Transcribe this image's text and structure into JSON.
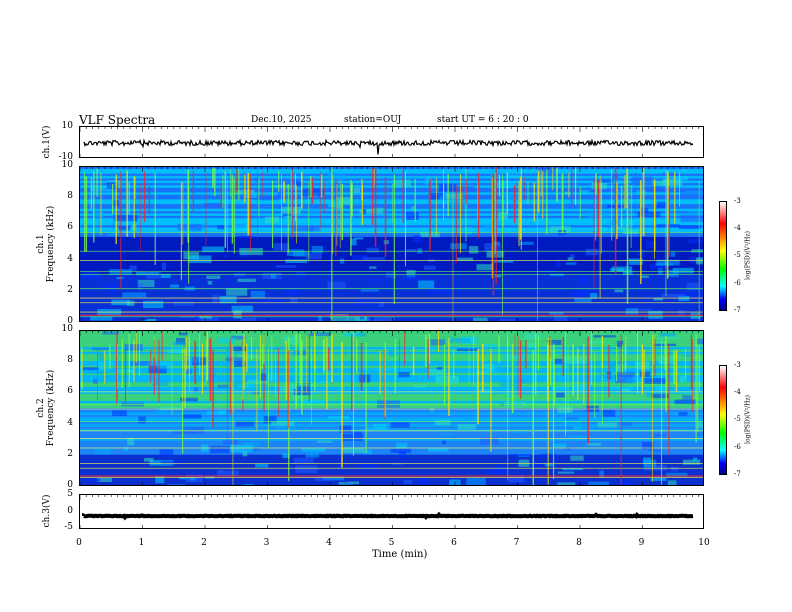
{
  "header": {
    "title": "VLF Spectra",
    "date": "Dec.10, 2025",
    "station": "station=OUJ",
    "start_ut": "start  UT =  6 : 20 : 0"
  },
  "colors": {
    "spectrum_bg": "#0a2ed0",
    "trace": "#000000"
  },
  "chart_data": [
    {
      "type": "line",
      "name": "ch1-waveform",
      "ylabel": "ch.1(V)",
      "ylim": [
        -10,
        10
      ],
      "ytick_labels": [
        "10",
        "-10"
      ],
      "level": 0
    },
    {
      "type": "heatmap",
      "name": "ch1-spectrogram",
      "ylabel_line1": "ch.1",
      "ylabel_line2": "Frequency  (kHz)",
      "ylim": [
        0,
        10
      ],
      "ytick_labels": [
        "10",
        "8",
        "6",
        "4",
        "2",
        "0"
      ],
      "colorbar": {
        "range": [
          -7,
          -3
        ],
        "tick_labels": [
          "-3",
          "-4",
          "-5",
          "-6",
          "-7"
        ],
        "label": "log(PSD)(V²/Hz)"
      },
      "xlim": [
        0,
        10
      ]
    },
    {
      "type": "heatmap",
      "name": "ch2-spectrogram",
      "ylabel_line1": "ch.2",
      "ylabel_line2": "Frequency  (kHz)",
      "ylim": [
        0,
        10
      ],
      "ytick_labels": [
        "10",
        "8",
        "6",
        "4",
        "2",
        "0"
      ],
      "colorbar": {
        "range": [
          -7,
          -3
        ],
        "tick_labels": [
          "-3",
          "-4",
          "-5",
          "-6",
          "-7"
        ],
        "label": "log(PSD)(V²/Hz)"
      },
      "xlim": [
        0,
        10
      ]
    },
    {
      "type": "line",
      "name": "ch3-waveform",
      "ylabel": "ch.3(V)",
      "ylim": [
        -5,
        5
      ],
      "ytick_labels": [
        "5",
        "0",
        "-5"
      ],
      "level": -1
    }
  ],
  "xaxis": {
    "label": "Time  (min)",
    "xlim": [
      0,
      10
    ],
    "tick_labels": [
      "0",
      "1",
      "2",
      "3",
      "4",
      "5",
      "6",
      "7",
      "8",
      "9",
      "10"
    ]
  }
}
